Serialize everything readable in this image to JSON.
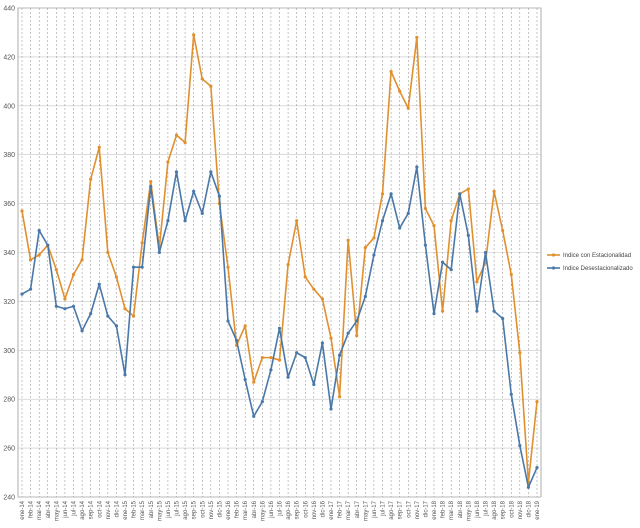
{
  "chart_data": {
    "type": "line",
    "title": "",
    "xlabel": "",
    "ylabel": "",
    "ylim": [
      240,
      440
    ],
    "yticks": [
      240,
      260,
      280,
      300,
      320,
      340,
      360,
      380,
      400,
      420,
      440
    ],
    "grid": true,
    "legend_position": "right",
    "categories": [
      "ene-14",
      "feb-14",
      "mar-14",
      "abr-14",
      "may-14",
      "jun-14",
      "jul-14",
      "ago-14",
      "sep-14",
      "oct-14",
      "nov-14",
      "dic-14",
      "ene-15",
      "feb-15",
      "mar-15",
      "abr-15",
      "may-15",
      "jun-15",
      "jul-15",
      "ago-15",
      "sep-15",
      "oct-15",
      "nov-15",
      "dic-15",
      "ene-16",
      "feb-16",
      "mar-16",
      "abr-16",
      "may-16",
      "jun-16",
      "jul-16",
      "ago-16",
      "sep-16",
      "oct-16",
      "nov-16",
      "dic-16",
      "ene-17",
      "feb-17",
      "mar-17",
      "abr-17",
      "may-17",
      "jun-17",
      "jul-17",
      "ago-17",
      "sep-17",
      "oct-17",
      "nov-17",
      "dic-17",
      "ene-18",
      "feb-18",
      "mar-18",
      "abr-18",
      "may-18",
      "jun-18",
      "jul-18",
      "ago-18",
      "sep-18",
      "oct-18",
      "nov-18",
      "dic-18",
      "ene-19"
    ],
    "series": [
      {
        "name": "Indice con Estacionalidad",
        "color": "#E0902E",
        "values": [
          357,
          337,
          339,
          343,
          333,
          321,
          331,
          337,
          370,
          383,
          340,
          330,
          317,
          314,
          344,
          369,
          342,
          377,
          388,
          385,
          429,
          411,
          408,
          360,
          334,
          302,
          310,
          287,
          297,
          297,
          296,
          335,
          353,
          330,
          325,
          321,
          305,
          281,
          345,
          306,
          342,
          346,
          364,
          414,
          406,
          399,
          428,
          358,
          351,
          316,
          353,
          364,
          366,
          328,
          336,
          365,
          349,
          331,
          299,
          246,
          279
        ]
      },
      {
        "name": "Indice Desestacionalizado",
        "color": "#4A78A8",
        "values": [
          323,
          325,
          349,
          343,
          318,
          317,
          318,
          308,
          315,
          327,
          314,
          310,
          290,
          334,
          334,
          367,
          340,
          353,
          373,
          353,
          365,
          356,
          373,
          363,
          312,
          304,
          288,
          273,
          279,
          292,
          309,
          289,
          299,
          297,
          286,
          303,
          276,
          298,
          307,
          312,
          322,
          339,
          353,
          364,
          350,
          356,
          375,
          343,
          315,
          336,
          333,
          364,
          347,
          316,
          340,
          316,
          313,
          282,
          261,
          244,
          252
        ]
      }
    ]
  }
}
